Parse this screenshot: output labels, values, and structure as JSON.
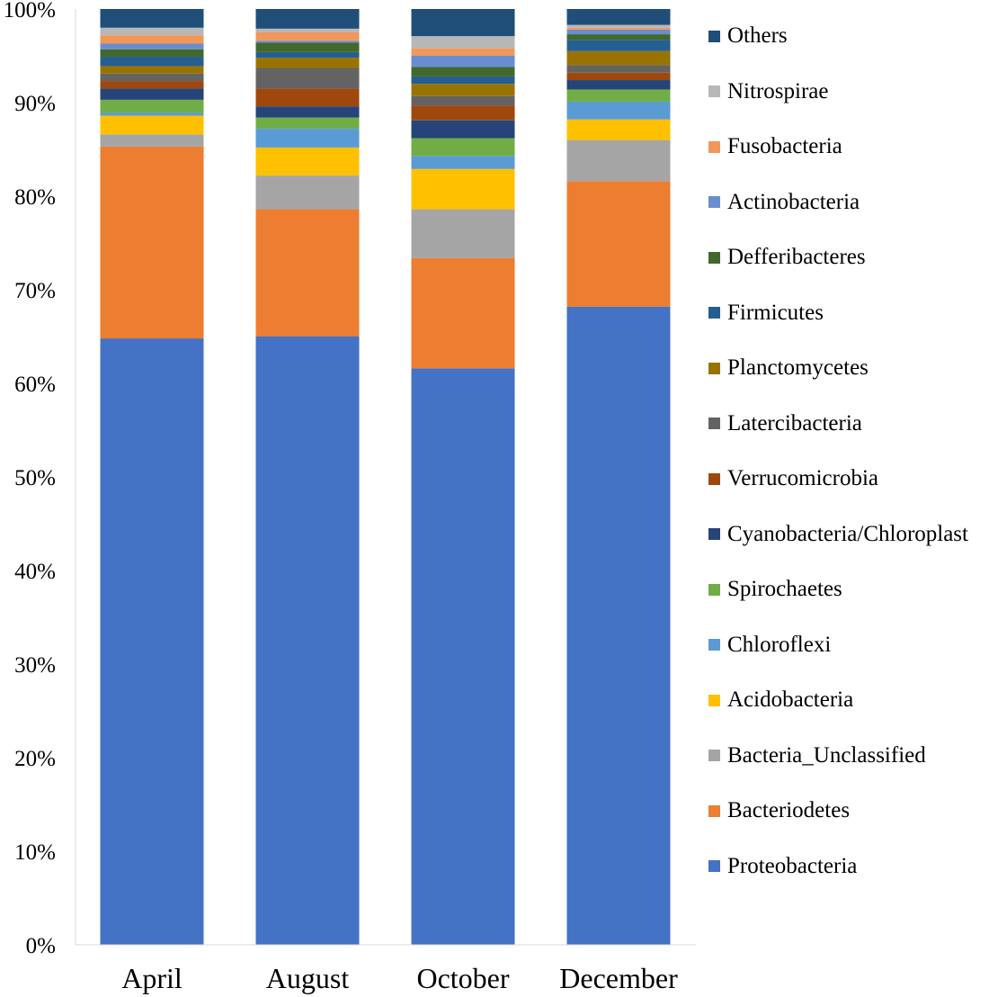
{
  "chart_data": {
    "type": "bar",
    "stacked": "percent",
    "categories": [
      "April",
      "August",
      "October",
      "December"
    ],
    "ylim": [
      0,
      100
    ],
    "yticks": [
      "0%",
      "10%",
      "20%",
      "30%",
      "40%",
      "50%",
      "60%",
      "70%",
      "80%",
      "90%",
      "100%"
    ],
    "grid": false,
    "legend_position": "right",
    "series": [
      {
        "name": "Proteobacteria",
        "color": "#4472C4",
        "values": [
          64.8,
          65.0,
          61.6,
          68.2
        ]
      },
      {
        "name": "Bacteriodetes",
        "color": "#ED7D31",
        "values": [
          20.5,
          13.6,
          11.8,
          13.4
        ]
      },
      {
        "name": "Bacteria_Unclassified",
        "color": "#A5A5A5",
        "values": [
          1.3,
          3.6,
          5.2,
          4.4
        ]
      },
      {
        "name": "Acidobacteria",
        "color": "#FFC000",
        "values": [
          2.0,
          3.0,
          4.3,
          2.2
        ]
      },
      {
        "name": "Chloroflexi",
        "color": "#5B9BD5",
        "values": [
          0.3,
          2.0,
          1.4,
          1.9
        ]
      },
      {
        "name": "Spirochaetes",
        "color": "#70AD47",
        "values": [
          1.4,
          1.2,
          1.9,
          1.3
        ]
      },
      {
        "name": "Cyanobacteria/Chloroplast",
        "color": "#264478",
        "values": [
          1.2,
          1.2,
          1.9,
          1.0
        ]
      },
      {
        "name": "Verrucomicrobia",
        "color": "#9E480E",
        "values": [
          0.8,
          1.9,
          1.6,
          0.8
        ]
      },
      {
        "name": "Latercibacteria",
        "color": "#636363",
        "values": [
          0.8,
          2.2,
          1.0,
          0.8
        ]
      },
      {
        "name": "Planctomycetes",
        "color": "#997300",
        "values": [
          0.8,
          1.1,
          1.3,
          1.5
        ]
      },
      {
        "name": "Firmicutes",
        "color": "#255E91",
        "values": [
          1.0,
          0.6,
          0.8,
          1.2
        ]
      },
      {
        "name": "Defferibacteres",
        "color": "#43682B",
        "values": [
          0.8,
          1.0,
          1.0,
          0.6
        ]
      },
      {
        "name": "Actinobacteria",
        "color": "#698ED0",
        "values": [
          0.6,
          0.2,
          1.2,
          0.5
        ]
      },
      {
        "name": "Fusobacteria",
        "color": "#F1975A",
        "values": [
          0.9,
          0.9,
          0.8,
          0.2
        ]
      },
      {
        "name": "Nitrospirae",
        "color": "#B7B7B7",
        "values": [
          0.8,
          0.4,
          1.3,
          0.3
        ]
      },
      {
        "name": "Others",
        "color": "#1F4E79",
        "values": [
          2.0,
          2.1,
          2.9,
          1.7
        ]
      }
    ]
  }
}
